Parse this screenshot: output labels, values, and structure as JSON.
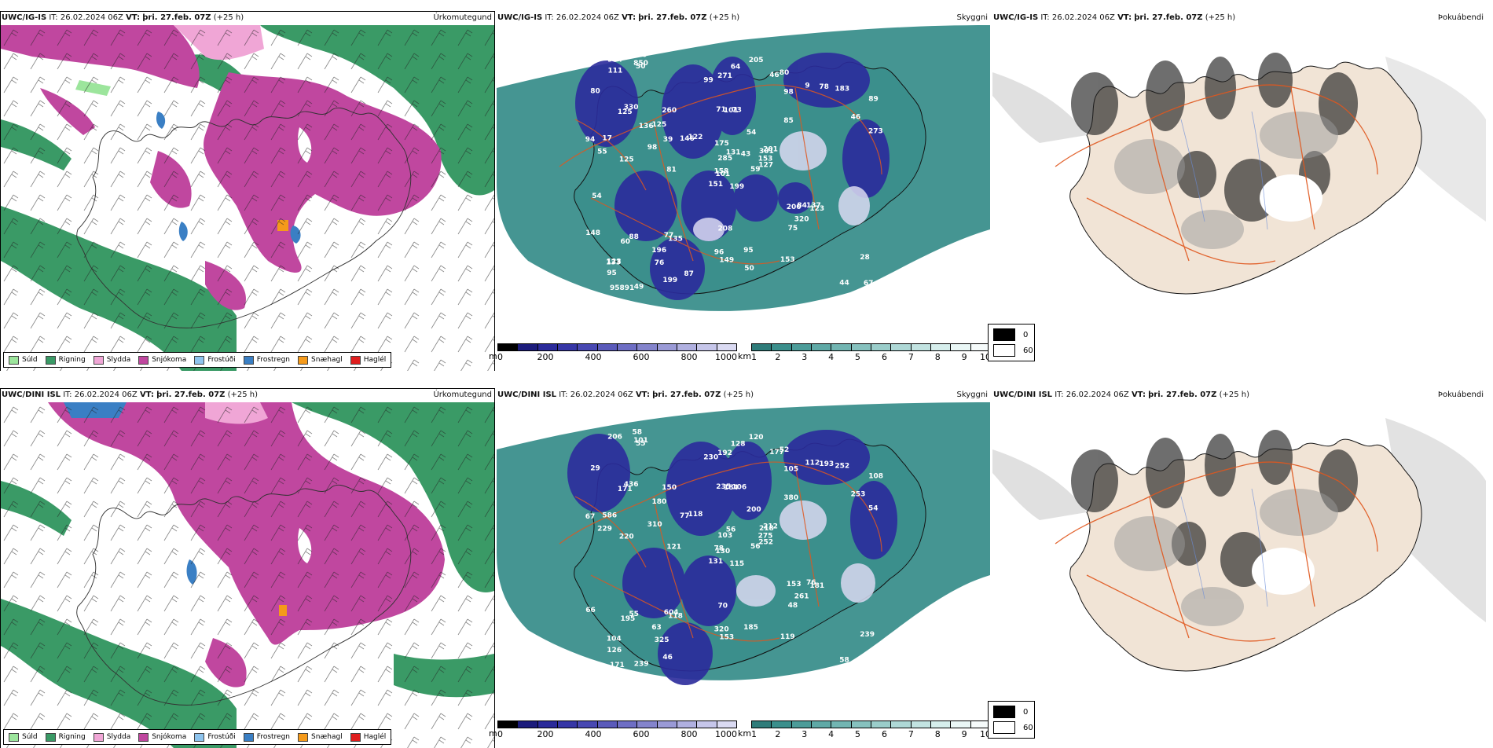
{
  "colors": {
    "precip_green_light": "#9ce59c",
    "precip_green": "#3a9a66",
    "precip_pink_light": "#f0a6d6",
    "precip_magenta": "#c0479f",
    "precip_lightblue": "#8ec4ee",
    "precip_blue": "#3a7fc4",
    "precip_orange": "#f59a1a",
    "precip_red": "#e01e1e",
    "cloud_teal": "#3b8f8c",
    "snow_navy": "#2b2b9c",
    "fog_land": "#f1e4d6",
    "road_orange": "#e0571e"
  },
  "precip_legend": [
    {
      "label": "Súld",
      "color": "#9ce59c"
    },
    {
      "label": "Rigning",
      "color": "#3a9a66"
    },
    {
      "label": "Slydda",
      "color": "#f0a6d6"
    },
    {
      "label": "Snjókoma",
      "color": "#c0479f"
    },
    {
      "label": "Frostúði",
      "color": "#8ec4ee"
    },
    {
      "label": "Frostregn",
      "color": "#3a7fc4"
    },
    {
      "label": "Snæhagl",
      "color": "#f59a1a"
    },
    {
      "label": "Haglél",
      "color": "#e01e1e"
    }
  ],
  "row1": {
    "model": "UWC/IG-IS",
    "it_label": "IT:",
    "it_value": "26.02.2024 06Z",
    "vt_label": "VT:",
    "vt_value": "þri. 27.feb. 07Z",
    "lead": "(+25 h)",
    "precip_title": "Úrkomutegund",
    "cloud_title": "Skyggni",
    "fog_title": "Þokuábendi",
    "cloud_labels": [
      "199",
      "125",
      "101",
      "123",
      "301",
      "135",
      "80",
      "73",
      "98",
      "59",
      "50",
      "67",
      "125",
      "89",
      "151",
      "85",
      "49",
      "71",
      "54",
      "88",
      "122",
      "95",
      "76",
      "101",
      "201",
      "123",
      "330",
      "271",
      "55",
      "200",
      "273",
      "158",
      "96",
      "285",
      "260",
      "9",
      "77",
      "44",
      "28",
      "137",
      "205",
      "146",
      "98",
      "75",
      "199",
      "94",
      "153",
      "95891",
      "149",
      "127",
      "60",
      "46",
      "80",
      "320",
      "153",
      "196",
      "850",
      "964",
      "95",
      "183",
      "64",
      "81",
      "17",
      "125",
      "78",
      "190",
      "46",
      "99",
      "131",
      "148",
      "208",
      "87",
      "84",
      "39",
      "133",
      "111",
      "136",
      "54",
      "175",
      "50",
      "43"
    ]
  },
  "row2": {
    "model": "UWC/DINI ISL",
    "it_label": "IT:",
    "it_value": "26.02.2024 06Z",
    "vt_label": "VT:",
    "vt_value": "þri. 27.feb. 07Z",
    "lead": "(+25 h)",
    "precip_title": "Úrkomutegund",
    "cloud_title": "Skyggni",
    "fog_title": "Þokuábendi",
    "cloud_labels": [
      "115",
      "171",
      "130",
      "104",
      "218",
      "118",
      "52",
      "106",
      "105",
      "56",
      "55",
      "45",
      "220",
      "108",
      "131",
      "380",
      "239",
      "235",
      "200",
      "55",
      "118",
      "126",
      "325",
      "184",
      "212",
      "181",
      "436",
      "192",
      "229",
      "153",
      "54",
      "78",
      "320",
      "103",
      "150",
      "112",
      "604",
      "58",
      "239",
      "76",
      "120",
      "77",
      "310",
      "48",
      "46",
      "67",
      "275",
      "171",
      "153",
      "252",
      "195",
      "253",
      "29",
      "261",
      "119",
      "63",
      "101",
      "206",
      "185",
      "252",
      "128",
      "121",
      "586",
      "180",
      "193",
      "58",
      "177",
      "230",
      "56",
      "66",
      "70"
    ]
  },
  "cloud_colorbar": {
    "unit": "m",
    "ticks": [
      "0",
      "200",
      "400",
      "600",
      "800",
      "1000"
    ],
    "colors": [
      "#000000",
      "#1c1c7c",
      "#2a2a9a",
      "#3636a6",
      "#4848b2",
      "#5a5aba",
      "#6e6ec4",
      "#8484cc",
      "#9a9ad6",
      "#b0b0e0",
      "#c6c6ea",
      "#dadaf2"
    ]
  },
  "vis_colorbar": {
    "unit": "km",
    "ticks": [
      "1",
      "2",
      "3",
      "4",
      "5",
      "6",
      "7",
      "8",
      "9",
      "10"
    ],
    "colors": [
      "#2f7c7a",
      "#3b8f8c",
      "#4c9c99",
      "#5fa9a6",
      "#72b5b2",
      "#86c1be",
      "#9acdca",
      "#aed8d6",
      "#c2e3e1",
      "#d6eeec",
      "#eaf7f6",
      "#f6fbfb"
    ]
  },
  "fog_legend": [
    {
      "label": "0",
      "color": "#000000"
    },
    {
      "label": "60",
      "color": "#ffffff"
    }
  ]
}
